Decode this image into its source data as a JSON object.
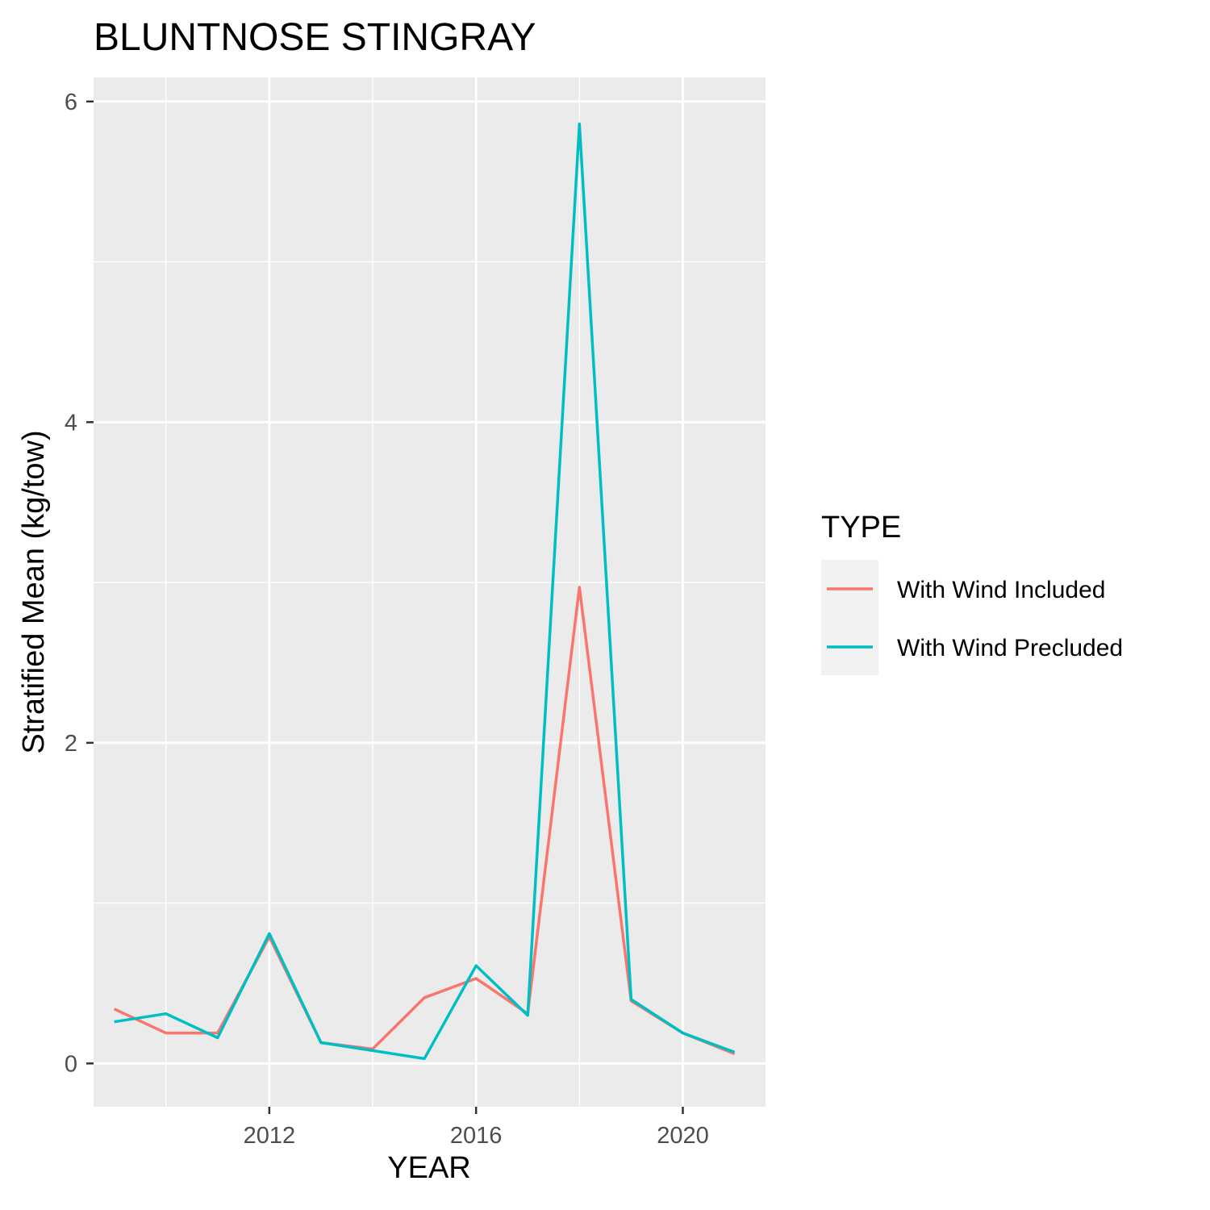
{
  "chart_data": {
    "type": "line",
    "title": "BLUNTNOSE STINGRAY",
    "xlabel": "YEAR",
    "ylabel": "Stratified Mean (kg/tow)",
    "xlim": [
      2008.6,
      2021.6
    ],
    "ylim": [
      -0.27,
      6.15
    ],
    "x_major_ticks": [
      2012,
      2016,
      2020
    ],
    "x_minor_ticks": [
      2010,
      2014,
      2018
    ],
    "y_major_ticks": [
      0,
      2,
      4,
      6
    ],
    "y_minor_ticks": [
      1,
      3,
      5
    ],
    "grid": true,
    "background": "#ebebeb",
    "legend": {
      "title": "TYPE",
      "position": "right"
    },
    "x": [
      2009,
      2010,
      2011,
      2012,
      2013,
      2014,
      2015,
      2016,
      2017,
      2018,
      2019,
      2020,
      2021
    ],
    "series": [
      {
        "name": "With Wind Included",
        "color": "#F8766D",
        "values": [
          0.34,
          0.19,
          0.19,
          0.79,
          0.13,
          0.09,
          0.41,
          0.53,
          0.31,
          2.97,
          0.39,
          0.19,
          0.06
        ]
      },
      {
        "name": "With Wind Precluded",
        "color": "#00BFC4",
        "values": [
          0.26,
          0.31,
          0.16,
          0.81,
          0.13,
          0.08,
          0.03,
          0.61,
          0.3,
          5.86,
          0.4,
          0.19,
          0.07
        ]
      }
    ]
  }
}
